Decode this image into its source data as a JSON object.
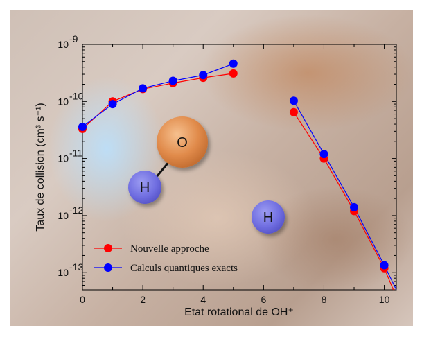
{
  "chart_data": {
    "type": "line",
    "title": "",
    "xlabel": "Etat rotational de OH⁺",
    "ylabel": "Taux de collision (cm³ s⁻¹)",
    "xlim": [
      0,
      10.4
    ],
    "ylim": [
      5e-14,
      1e-09
    ],
    "yscale": "log",
    "x_ticks": [
      0,
      2,
      4,
      6,
      8,
      10
    ],
    "x_tick_labels": [
      "0",
      "2",
      "4",
      "6",
      "8",
      "10"
    ],
    "y_ticks": [
      1e-13,
      1e-12,
      1e-11,
      1e-10,
      1e-09
    ],
    "y_tick_labels": [
      {
        "base": "10",
        "exp": "-13"
      },
      {
        "base": "10",
        "exp": "-12"
      },
      {
        "base": "10",
        "exp": "-11"
      },
      {
        "base": "10",
        "exp": "-10"
      },
      {
        "base": "10",
        "exp": "-9"
      }
    ],
    "grid": false,
    "legend_position": "lower-left",
    "series": [
      {
        "name": "Nouvelle approche",
        "color": "#ff0000",
        "segments": [
          {
            "x": [
              0,
              1,
              2,
              3,
              4,
              5
            ],
            "y": [
              3.3e-11,
              1e-10,
              1.65e-10,
              2.1e-10,
              2.6e-10,
              3.1e-10
            ]
          },
          {
            "x": [
              7,
              8,
              9,
              10,
              10.3
            ],
            "y": [
              6.5e-11,
              1e-11,
              1.2e-12,
              1.2e-13,
              5e-14
            ]
          }
        ]
      },
      {
        "name": "Calculs quantiques exacts",
        "color": "#0000ff",
        "segments": [
          {
            "x": [
              0,
              1,
              2,
              3,
              4,
              5
            ],
            "y": [
              3.6e-11,
              9e-11,
              1.7e-10,
              2.3e-10,
              2.9e-10,
              4.6e-10
            ]
          },
          {
            "x": [
              7,
              8,
              9,
              10,
              10.4
            ],
            "y": [
              1.03e-10,
              1.2e-11,
              1.4e-12,
              1.35e-13,
              5e-14
            ]
          }
        ]
      }
    ],
    "annotations": [
      {
        "label": "O",
        "color": "#e08a4a"
      },
      {
        "label": "H",
        "color": "#6f6de0"
      },
      {
        "label": "H",
        "color": "#6f6de0"
      }
    ]
  }
}
